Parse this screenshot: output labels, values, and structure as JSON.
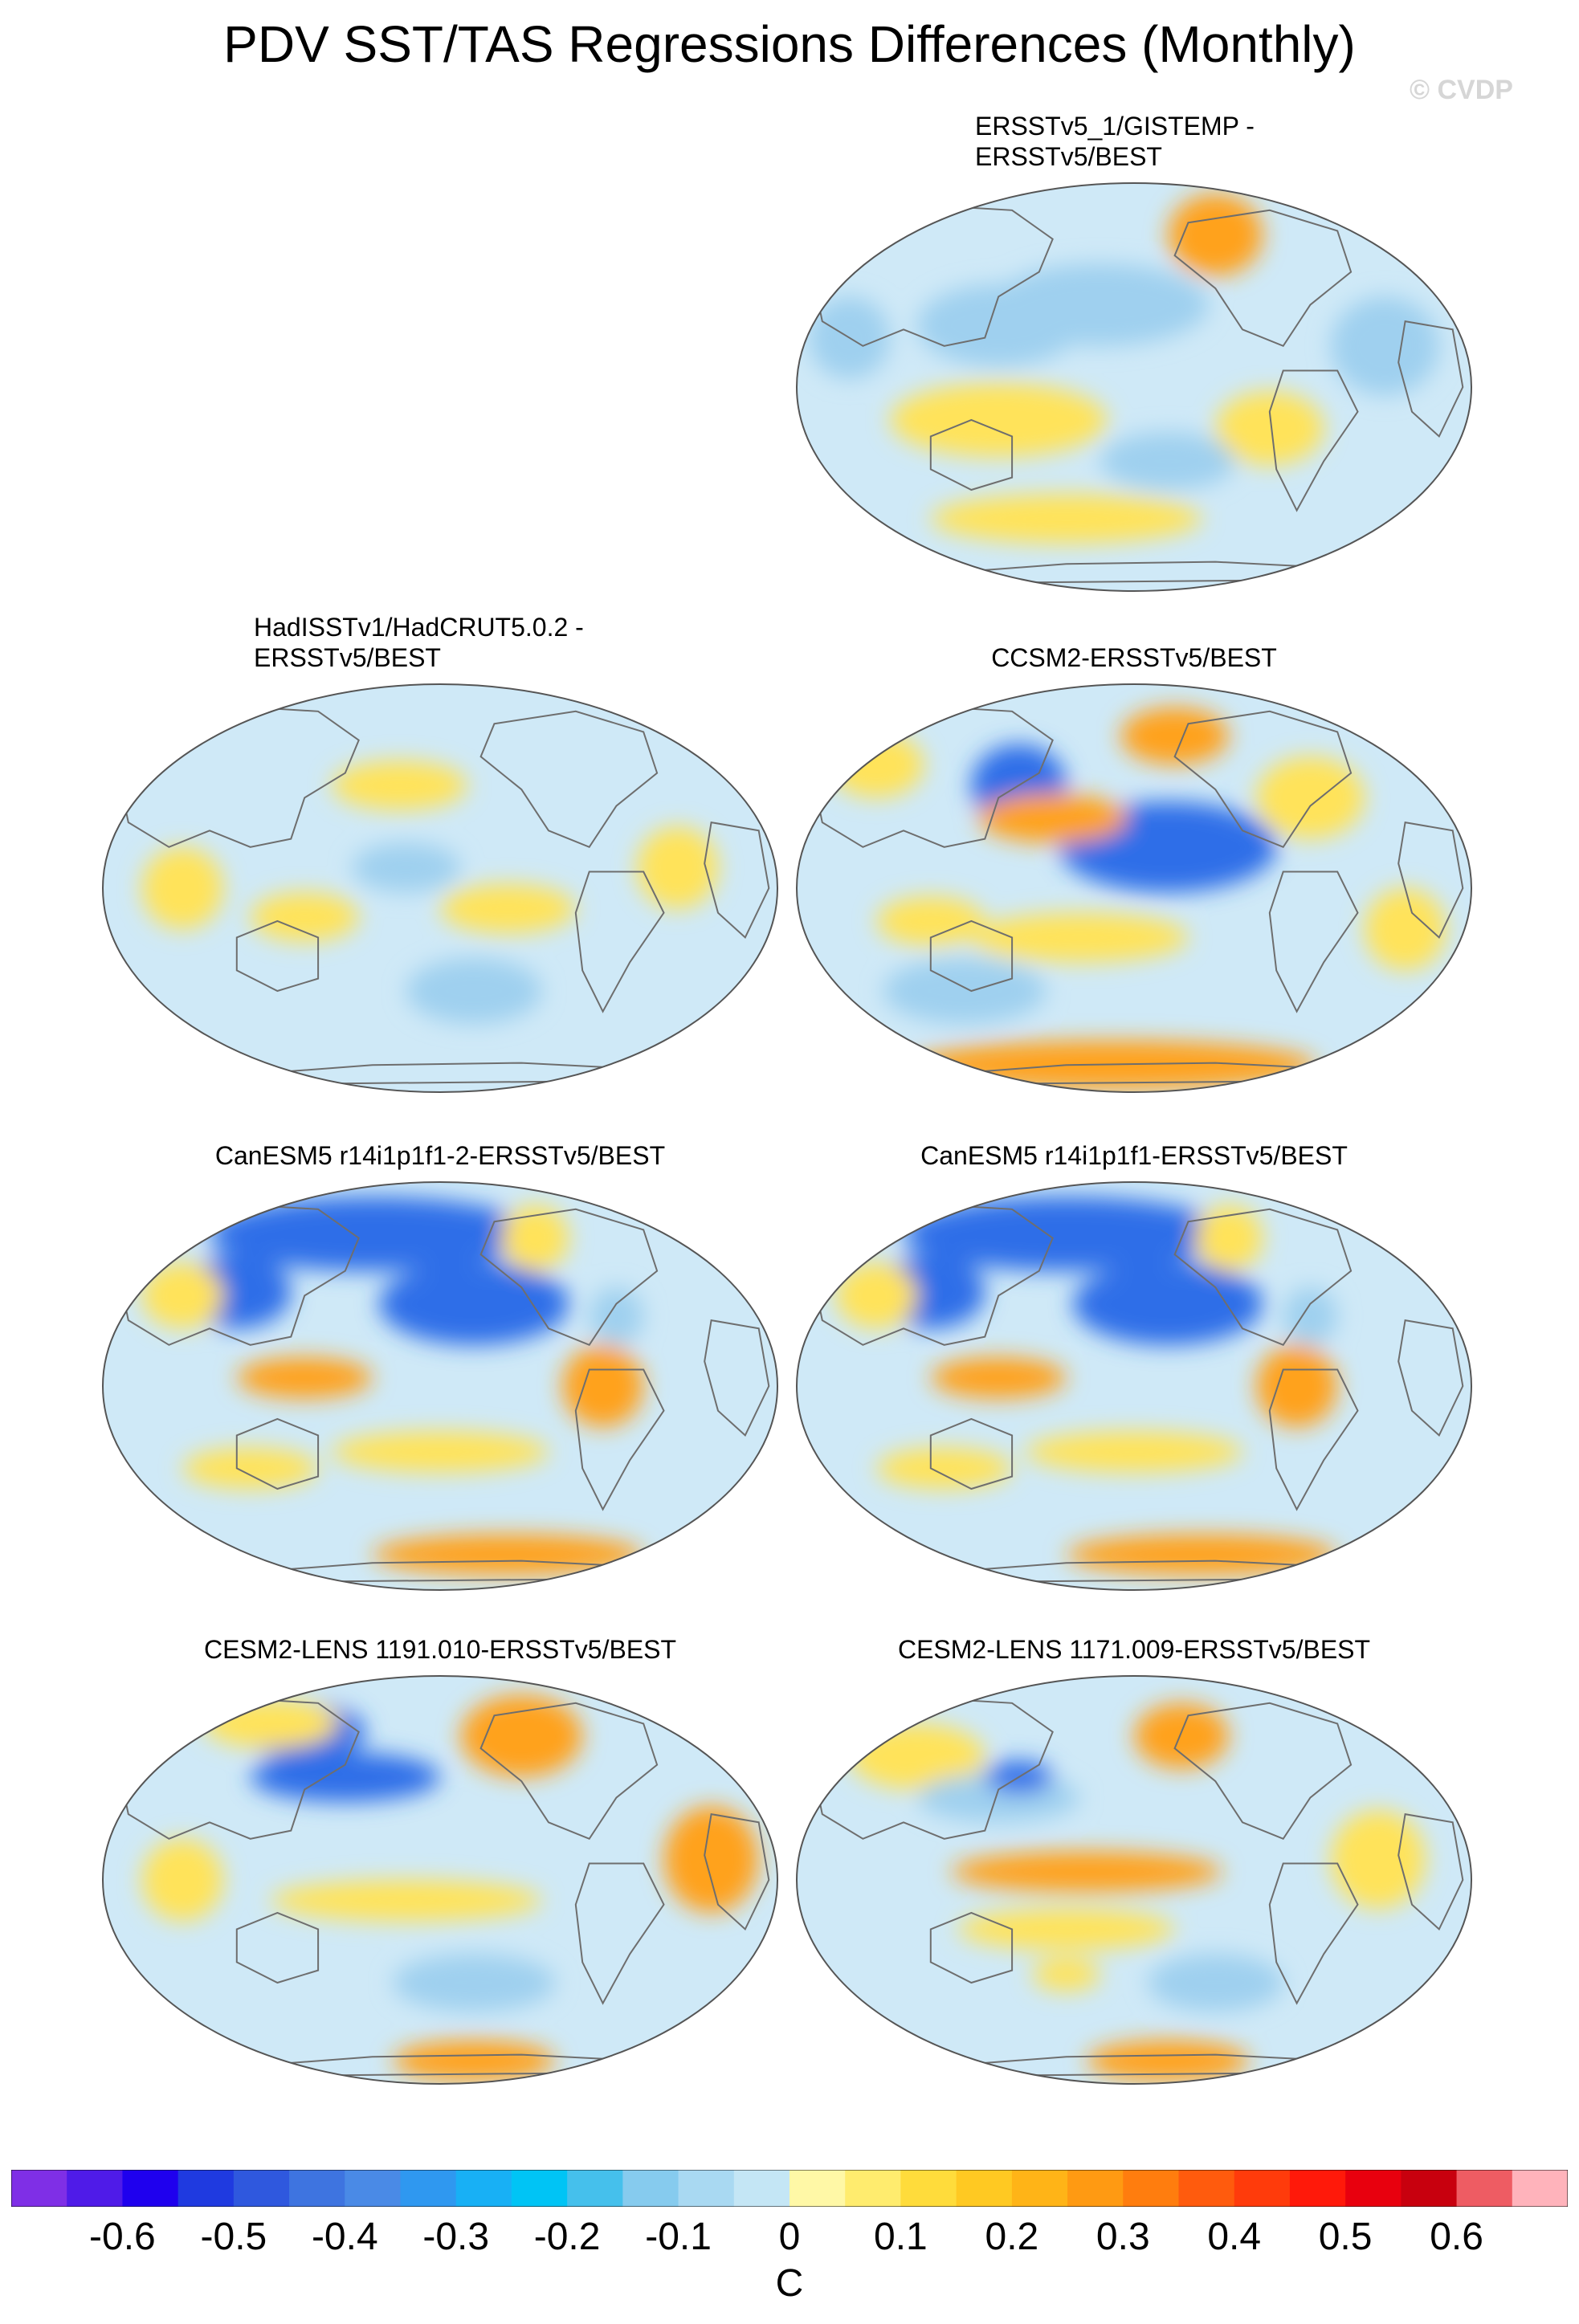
{
  "title": "PDV SST/TAS Regressions Differences (Monthly)",
  "watermark": "© CVDP",
  "panels": [
    {
      "label_lines": [
        "ERSSTv5_1/GISTEMP -",
        "ERSSTv5/BEST"
      ],
      "column": "right",
      "row": 0,
      "blobs": [
        [
          "hot",
          "warm-strong",
          0.62,
          0.13,
          0.07,
          0.1
        ],
        [
          "warm",
          "warm",
          0.3,
          0.58,
          0.16,
          0.09
        ],
        [
          "warm",
          "warm",
          0.4,
          0.82,
          0.2,
          0.06
        ],
        [
          "cool",
          "cool",
          0.45,
          0.3,
          0.16,
          0.1
        ],
        [
          "cool",
          "cool",
          0.3,
          0.35,
          0.12,
          0.1
        ],
        [
          "warm",
          "warm",
          0.7,
          0.6,
          0.08,
          0.09
        ],
        [
          "cool",
          "cool",
          0.08,
          0.38,
          0.06,
          0.1
        ],
        [
          "cool",
          "cool",
          0.87,
          0.4,
          0.08,
          0.12
        ],
        [
          "cool",
          "cool",
          0.55,
          0.68,
          0.1,
          0.07
        ]
      ]
    },
    {
      "label_lines": [
        "HadISSTv1/HadCRUT5.0.2 -",
        "ERSSTv5/BEST"
      ],
      "column": "left",
      "row": 1,
      "blobs": [
        [
          "warm",
          "warm",
          0.44,
          0.25,
          0.1,
          0.06
        ],
        [
          "warm",
          "warm",
          0.3,
          0.57,
          0.08,
          0.06
        ],
        [
          "warm",
          "warm",
          0.6,
          0.55,
          0.1,
          0.06
        ],
        [
          "cool",
          "cool",
          0.55,
          0.75,
          0.1,
          0.08
        ],
        [
          "warm",
          "warm",
          0.12,
          0.5,
          0.06,
          0.1
        ],
        [
          "warm",
          "warm",
          0.85,
          0.45,
          0.06,
          0.1
        ],
        [
          "cool",
          "cool",
          0.45,
          0.45,
          0.08,
          0.06
        ]
      ]
    },
    {
      "label_lines": [
        "CCSM2-ERSSTv5/BEST"
      ],
      "column": "right",
      "row": 1,
      "blobs": [
        [
          "hot",
          "warm-strong",
          0.56,
          0.13,
          0.08,
          0.07
        ],
        [
          "cold",
          "cool-strong",
          0.55,
          0.4,
          0.16,
          0.11
        ],
        [
          "cold",
          "cool-strong",
          0.33,
          0.25,
          0.07,
          0.1
        ],
        [
          "warm",
          "warm-strong",
          0.38,
          0.33,
          0.11,
          0.06
        ],
        [
          "warm",
          "warm",
          0.42,
          0.62,
          0.16,
          0.06
        ],
        [
          "warm",
          "warm",
          0.2,
          0.58,
          0.08,
          0.06
        ],
        [
          "warm",
          "warm-strong",
          0.47,
          0.93,
          0.3,
          0.06
        ],
        [
          "warm",
          "warm",
          0.12,
          0.2,
          0.07,
          0.08
        ],
        [
          "warm",
          "warm",
          0.76,
          0.28,
          0.08,
          0.1
        ],
        [
          "warm",
          "warm",
          0.9,
          0.6,
          0.06,
          0.1
        ],
        [
          "cool",
          "cool",
          0.25,
          0.75,
          0.12,
          0.08
        ]
      ]
    },
    {
      "label_lines": [
        "CanESM5 r14i1p1f1-2-ERSSTv5/BEST"
      ],
      "column": "left",
      "row": 2,
      "blobs": [
        [
          "cold",
          "cool-strong",
          0.4,
          0.13,
          0.24,
          0.09
        ],
        [
          "cold",
          "cool-strong",
          0.2,
          0.27,
          0.08,
          0.09
        ],
        [
          "cool",
          "cool-strong",
          0.55,
          0.3,
          0.14,
          0.1
        ],
        [
          "hot",
          "warm-strong",
          0.74,
          0.5,
          0.06,
          0.1
        ],
        [
          "warm",
          "warm-strong",
          0.3,
          0.48,
          0.1,
          0.05
        ],
        [
          "warm",
          "warm",
          0.5,
          0.66,
          0.16,
          0.05
        ],
        [
          "warm",
          "warm",
          0.22,
          0.7,
          0.1,
          0.05
        ],
        [
          "warm",
          "warm-strong",
          0.6,
          0.91,
          0.2,
          0.05
        ],
        [
          "warm",
          "warm",
          0.12,
          0.28,
          0.06,
          0.08
        ],
        [
          "warm",
          "warm",
          0.64,
          0.14,
          0.05,
          0.08
        ],
        [
          "cool",
          "cool",
          0.76,
          0.33,
          0.04,
          0.07
        ]
      ]
    },
    {
      "label_lines": [
        "CanESM5 r14i1p1f1-ERSSTv5/BEST"
      ],
      "column": "right",
      "row": 2,
      "blobs": [
        [
          "cold",
          "cool-strong",
          0.4,
          0.13,
          0.24,
          0.09
        ],
        [
          "cold",
          "cool-strong",
          0.2,
          0.27,
          0.08,
          0.09
        ],
        [
          "cool",
          "cool-strong",
          0.55,
          0.3,
          0.14,
          0.1
        ],
        [
          "hot",
          "warm-strong",
          0.74,
          0.5,
          0.06,
          0.1
        ],
        [
          "warm",
          "warm-strong",
          0.3,
          0.48,
          0.1,
          0.05
        ],
        [
          "warm",
          "warm",
          0.5,
          0.66,
          0.16,
          0.05
        ],
        [
          "warm",
          "warm",
          0.22,
          0.7,
          0.1,
          0.05
        ],
        [
          "warm",
          "warm-strong",
          0.6,
          0.91,
          0.2,
          0.05
        ],
        [
          "warm",
          "warm",
          0.12,
          0.28,
          0.06,
          0.08
        ],
        [
          "warm",
          "warm",
          0.64,
          0.14,
          0.05,
          0.08
        ],
        [
          "cool",
          "cool",
          0.76,
          0.33,
          0.04,
          0.07
        ]
      ]
    },
    {
      "label_lines": [
        "CESM2-LENS 1191.010-ERSSTv5/BEST"
      ],
      "column": "left",
      "row": 3,
      "blobs": [
        [
          "hot",
          "warm-strong",
          0.62,
          0.15,
          0.09,
          0.1
        ],
        [
          "cold",
          "cool-strong",
          0.36,
          0.25,
          0.14,
          0.06
        ],
        [
          "cool",
          "cool-strong",
          0.3,
          0.14,
          0.09,
          0.07
        ],
        [
          "warm",
          "warm",
          0.45,
          0.55,
          0.2,
          0.05
        ],
        [
          "warm",
          "warm-strong",
          0.9,
          0.45,
          0.07,
          0.13
        ],
        [
          "warm",
          "warm",
          0.12,
          0.5,
          0.06,
          0.1
        ],
        [
          "hot",
          "warm-strong",
          0.55,
          0.94,
          0.12,
          0.05
        ],
        [
          "warm",
          "warm",
          0.25,
          0.12,
          0.1,
          0.06
        ],
        [
          "cool",
          "cool",
          0.55,
          0.75,
          0.12,
          0.07
        ]
      ]
    },
    {
      "label_lines": [
        "CESM2-LENS 1171.009-ERSSTv5/BEST"
      ],
      "column": "right",
      "row": 3,
      "blobs": [
        [
          "hot",
          "warm-strong",
          0.57,
          0.15,
          0.07,
          0.08
        ],
        [
          "warm",
          "warm-strong",
          0.43,
          0.48,
          0.2,
          0.05
        ],
        [
          "warm",
          "warm",
          0.4,
          0.62,
          0.16,
          0.05
        ],
        [
          "warm",
          "warm",
          0.18,
          0.2,
          0.1,
          0.08
        ],
        [
          "cool",
          "cool",
          0.3,
          0.3,
          0.12,
          0.06
        ],
        [
          "cold",
          "cool-strong",
          0.33,
          0.25,
          0.05,
          0.04
        ],
        [
          "warm",
          "warm",
          0.86,
          0.45,
          0.07,
          0.12
        ],
        [
          "warm",
          "warm-strong",
          0.55,
          0.94,
          0.12,
          0.05
        ],
        [
          "warm",
          "warm",
          0.4,
          0.73,
          0.05,
          0.04
        ],
        [
          "cool",
          "cool",
          0.62,
          0.75,
          0.1,
          0.07
        ]
      ]
    }
  ],
  "colors": {
    "background": "#cfe9f7",
    "cool": "#9fd0ef",
    "cool-strong": "#2f6ee8",
    "warm": "#ffe35a",
    "warm-strong": "#ffa21f",
    "land_outline": "#6e6e6e"
  },
  "colorbar": {
    "units": "C",
    "colors": [
      "#7f2fe6",
      "#4f1be8",
      "#1f00ee",
      "#1f3ae0",
      "#2f58de",
      "#3e74e0",
      "#4a8ae6",
      "#2f98f0",
      "#18b0f5",
      "#00c4f5",
      "#45c0ec",
      "#86cbee",
      "#a9d9f2",
      "#c4e6f5",
      "#fff8a6",
      "#ffec6e",
      "#ffdc3b",
      "#ffc922",
      "#ffb417",
      "#ff9a12",
      "#ff7d0e",
      "#ff5b0d",
      "#ff3b0b",
      "#ff190a",
      "#e8000e",
      "#c8000e",
      "#ee5c63",
      "#ffb3bb"
    ],
    "labels": [
      "-0.6",
      "-0.5",
      "-0.4",
      "-0.3",
      "-0.2",
      "-0.1",
      "0",
      "0.1",
      "0.2",
      "0.3",
      "0.4",
      "0.5",
      "0.6"
    ]
  },
  "chart_data": {
    "type": "heatmap",
    "title": "PDV SST/TAS Regressions Differences (Monthly)",
    "units": "C",
    "color_range": [
      -0.65,
      0.65
    ],
    "color_levels": [
      -0.65,
      -0.6,
      -0.55,
      -0.5,
      -0.45,
      -0.4,
      -0.35,
      -0.3,
      -0.25,
      -0.2,
      -0.15,
      -0.1,
      -0.05,
      0,
      0.05,
      0.1,
      0.15,
      0.2,
      0.25,
      0.3,
      0.35,
      0.4,
      0.45,
      0.5,
      0.55,
      0.6,
      0.65
    ],
    "projection": "Robinson (Pacific-centered global maps)",
    "panels": [
      "ERSSTv5_1/GISTEMP - ERSSTv5/BEST",
      "HadISSTv1/HadCRUT5.0.2 - ERSSTv5/BEST",
      "CCSM2-ERSSTv5/BEST",
      "CanESM5 r14i1p1f1-2-ERSSTv5/BEST",
      "CanESM5 r14i1p1f1-ERSSTv5/BEST",
      "CESM2-LENS 1191.010-ERSSTv5/BEST",
      "CESM2-LENS 1171.009-ERSSTv5/BEST"
    ]
  }
}
